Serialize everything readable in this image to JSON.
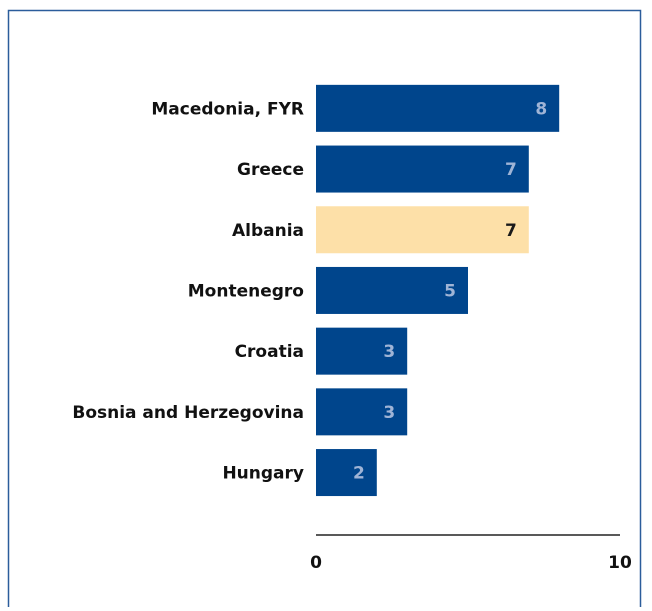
{
  "chart_data": {
    "type": "bar",
    "orientation": "horizontal",
    "categories": [
      "Macedonia, FYR",
      "Greece",
      "Albania",
      "Montenegro",
      "Croatia",
      "Bosnia and Herzegovina",
      "Hungary"
    ],
    "values": [
      8,
      7,
      7,
      5,
      3,
      3,
      2
    ],
    "colors": [
      "#00458c",
      "#00458c",
      "#fde0a8",
      "#00458c",
      "#00458c",
      "#00458c",
      "#00458c"
    ],
    "value_label_colors": [
      "#9fb4d6",
      "#9fb4d6",
      "#1a1a1a",
      "#9fb4d6",
      "#9fb4d6",
      "#9fb4d6",
      "#9fb4d6"
    ],
    "xlim": [
      0,
      10
    ],
    "xticks": [
      0,
      10
    ],
    "grid": false
  }
}
